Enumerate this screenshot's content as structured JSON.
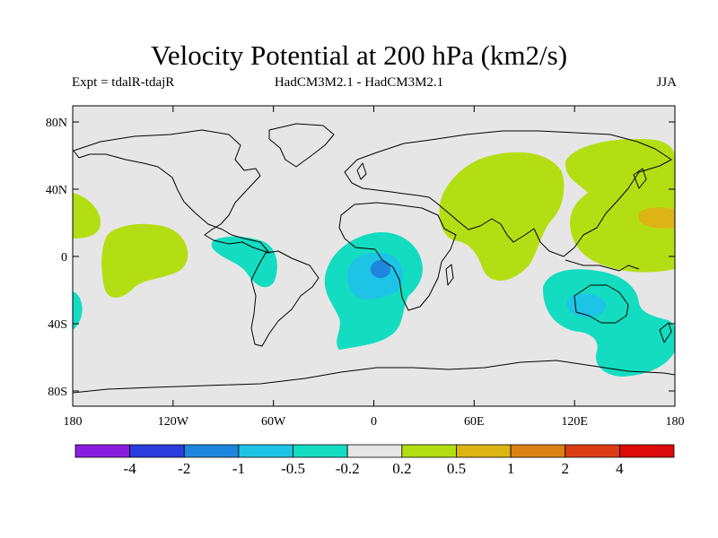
{
  "title": "Velocity Potential at 200 hPa (km2/s)",
  "subtitle_left": "Expt = tdalR-tdajR",
  "subtitle_center": "HadCM3M2.1 - HadCM3M2.1",
  "subtitle_right": "JJA",
  "lat_ticks": [
    "80N",
    "40N",
    "0",
    "40S",
    "80S"
  ],
  "lon_ticks": [
    "180",
    "120W",
    "60W",
    "0",
    "60E",
    "120E",
    "180"
  ],
  "colorbar": {
    "colors": [
      "#8a1ee0",
      "#2a3cdc",
      "#1f86dd",
      "#1ec4e6",
      "#14dcc0",
      "#e6e6e6",
      "#b4de14",
      "#dcb414",
      "#dc8214",
      "#dc3c14",
      "#dc0a0a"
    ],
    "labels": [
      "-4",
      "-2",
      "-1",
      "-0.5",
      "-0.2",
      "0.2",
      "0.5",
      "1",
      "2",
      "4"
    ]
  },
  "colors": {
    "background": "#e6e6e6",
    "teal": "#14dcc0",
    "cyan": "#1ec4e6",
    "blue": "#1f86dd",
    "lime": "#b4de14",
    "gold": "#dcb414"
  }
}
